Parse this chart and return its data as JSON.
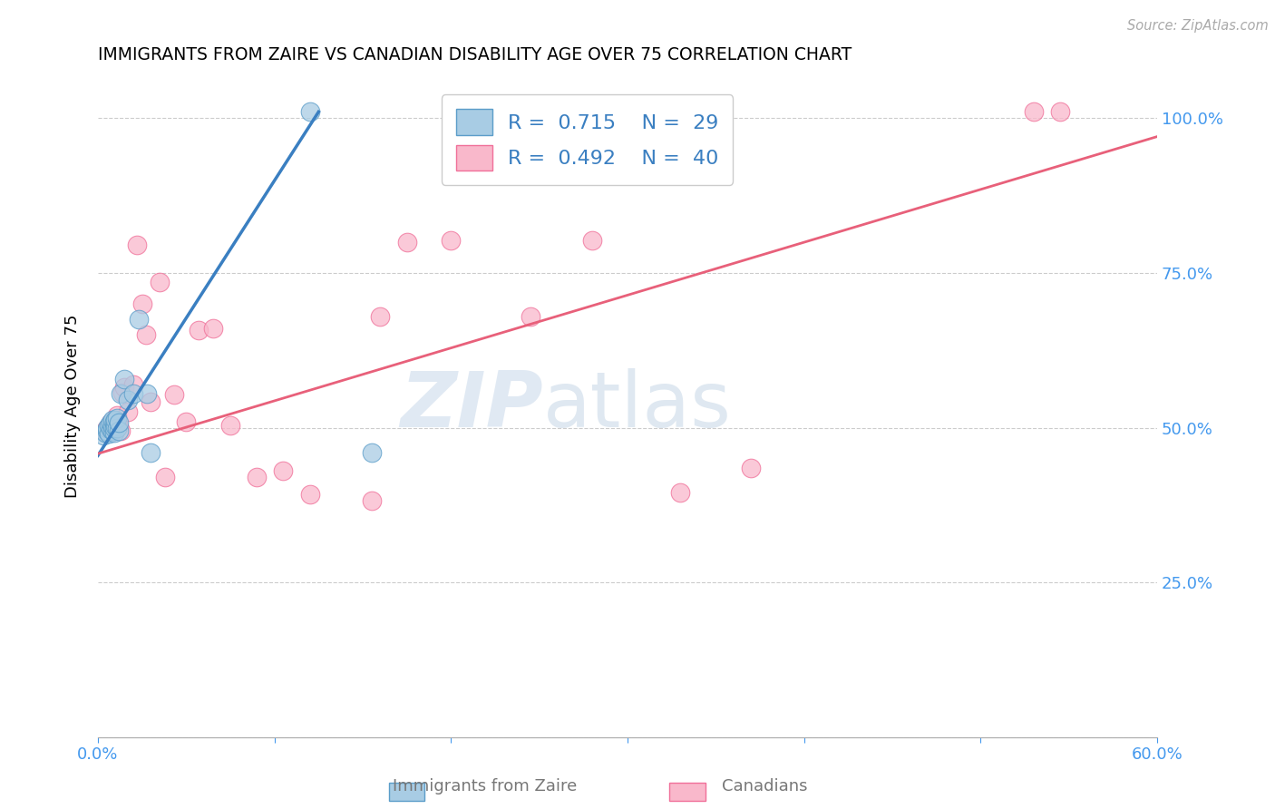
{
  "title": "IMMIGRANTS FROM ZAIRE VS CANADIAN DISABILITY AGE OVER 75 CORRELATION CHART",
  "source": "Source: ZipAtlas.com",
  "ylabel": "Disability Age Over 75",
  "xlim": [
    0.0,
    0.6
  ],
  "ylim": [
    0.0,
    1.07
  ],
  "legend_blue_r": "0.715",
  "legend_blue_n": "29",
  "legend_pink_r": "0.492",
  "legend_pink_n": "40",
  "legend_label_blue": "Immigrants from Zaire",
  "legend_label_pink": "Canadians",
  "blue_fill": "#a8cce4",
  "pink_fill": "#f9b8cb",
  "blue_edge": "#5b9dc9",
  "pink_edge": "#f07099",
  "blue_line_color": "#3a7fc1",
  "pink_line_color": "#e8607a",
  "watermark_zip": "ZIP",
  "watermark_atlas": "atlas",
  "blue_points_x": [
    0.003,
    0.004,
    0.005,
    0.005,
    0.006,
    0.006,
    0.007,
    0.007,
    0.008,
    0.008,
    0.008,
    0.009,
    0.009,
    0.009,
    0.01,
    0.01,
    0.011,
    0.011,
    0.012,
    0.012,
    0.013,
    0.015,
    0.017,
    0.02,
    0.023,
    0.028,
    0.03,
    0.12,
    0.155
  ],
  "blue_points_y": [
    0.488,
    0.492,
    0.495,
    0.5,
    0.49,
    0.503,
    0.498,
    0.508,
    0.495,
    0.502,
    0.512,
    0.492,
    0.5,
    0.51,
    0.502,
    0.512,
    0.5,
    0.515,
    0.495,
    0.508,
    0.555,
    0.578,
    0.545,
    0.555,
    0.675,
    0.555,
    0.46,
    1.01,
    0.46
  ],
  "pink_points_x": [
    0.004,
    0.005,
    0.006,
    0.007,
    0.008,
    0.009,
    0.01,
    0.011,
    0.012,
    0.013,
    0.014,
    0.015,
    0.017,
    0.02,
    0.022,
    0.025,
    0.027,
    0.03,
    0.035,
    0.038,
    0.043,
    0.05,
    0.057,
    0.065,
    0.075,
    0.09,
    0.105,
    0.12,
    0.155,
    0.16,
    0.175,
    0.2,
    0.245,
    0.28,
    0.295,
    0.31,
    0.33,
    0.37,
    0.53,
    0.545
  ],
  "pink_points_y": [
    0.495,
    0.5,
    0.5,
    0.508,
    0.502,
    0.495,
    0.51,
    0.52,
    0.502,
    0.495,
    0.557,
    0.565,
    0.525,
    0.57,
    0.795,
    0.7,
    0.65,
    0.542,
    0.735,
    0.42,
    0.553,
    0.51,
    0.658,
    0.66,
    0.503,
    0.42,
    0.43,
    0.392,
    0.382,
    0.68,
    0.8,
    0.803,
    0.68,
    0.803,
    1.01,
    1.01,
    0.395,
    0.435,
    1.01,
    1.01
  ],
  "blue_line_x0": 0.0,
  "blue_line_y0": 0.455,
  "blue_line_x1": 0.125,
  "blue_line_y1": 1.01,
  "pink_line_x0": 0.0,
  "pink_line_y0": 0.458,
  "pink_line_x1": 0.6,
  "pink_line_y1": 0.97,
  "background_color": "#ffffff"
}
